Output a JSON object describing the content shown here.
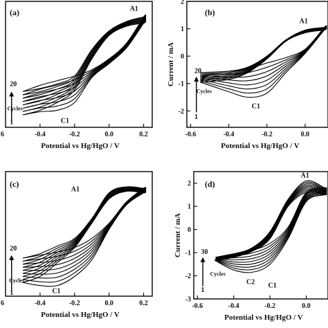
{
  "chart_data": [
    {
      "type": "line",
      "panel_label": "(a)",
      "xlabel": "Potential vs Hg/HgO / V",
      "ylabel": "",
      "xticks": [
        "-0.4",
        "-0.2",
        "0.0",
        "0.2"
      ],
      "xtick_values": [
        -0.4,
        -0.2,
        0.0,
        0.2
      ],
      "edge_tick": "6",
      "yticks": [],
      "xlim": [
        -0.6,
        0.25
      ],
      "ylim": [
        -2.1,
        1.95
      ],
      "cycles": 20,
      "annotations": {
        "peak_anodic": "A1",
        "peak_cathodic": "C1",
        "cycle_top": "20",
        "cycle_bottom": "1",
        "cycles_label": "Cycles"
      },
      "series": [
        {
          "name": "",
          "x": [
            -0.5,
            -0.4,
            -0.3,
            -0.2,
            -0.1,
            0.0,
            0.1,
            0.2
          ],
          "y": [
            -0.95,
            -0.85,
            -0.7,
            -0.45,
            0.4,
            1.0,
            1.3,
            1.45
          ]
        },
        {
          "name": "",
          "x": [
            0.2,
            0.1,
            0.0,
            -0.1,
            -0.2,
            -0.3,
            -0.4,
            -0.5
          ],
          "y": [
            1.45,
            0.6,
            0.1,
            -0.25,
            -0.45,
            -0.6,
            -0.75,
            -0.95
          ]
        },
        {
          "name": "",
          "x": [
            -0.5,
            -0.4,
            -0.3,
            -0.2,
            -0.1,
            0.0,
            0.1,
            0.2
          ],
          "y": [
            -1.7,
            -1.55,
            -1.3,
            -0.9,
            0.1,
            0.85,
            1.15,
            1.25
          ]
        },
        {
          "name": "",
          "x": [
            0.2,
            0.1,
            0.0,
            -0.1,
            -0.2,
            -0.3,
            -0.4,
            -0.5
          ],
          "y": [
            1.25,
            0.45,
            -0.05,
            -0.5,
            -1.3,
            -1.55,
            -1.6,
            -1.7
          ]
        }
      ]
    },
    {
      "type": "line",
      "panel_label": "(b)",
      "xlabel": "Potential vs Hg/HgO / V",
      "ylabel": "Current / mA",
      "xticks": [
        "-0.6",
        "-0.4",
        "-0.2",
        "0.0"
      ],
      "xtick_values": [
        -0.6,
        -0.4,
        -0.2,
        0.0
      ],
      "yticks": [
        "2",
        "1",
        "0",
        "-1",
        "-2"
      ],
      "ytick_values": [
        2,
        1,
        0,
        -1,
        -2
      ],
      "xlim": [
        -0.62,
        0.12
      ],
      "ylim": [
        -2.6,
        2.0
      ],
      "cycles": 20,
      "annotations": {
        "peak_anodic": "A1",
        "peak_cathodic": "C1",
        "cycle_top": "20",
        "cycle_bottom": "1",
        "cycles_label": "Cycles"
      },
      "series": [
        {
          "name": "",
          "x": [
            -0.55,
            -0.4,
            -0.3,
            -0.2,
            -0.1,
            0.0,
            0.1
          ],
          "y": [
            -0.6,
            -0.55,
            -0.4,
            0.0,
            0.6,
            0.95,
            1.05
          ]
        },
        {
          "name": "",
          "x": [
            0.1,
            0.0,
            -0.1,
            -0.2,
            -0.3,
            -0.4,
            -0.55
          ],
          "y": [
            1.05,
            0.25,
            -0.05,
            -0.25,
            -0.45,
            -0.55,
            -0.6
          ]
        },
        {
          "name": "",
          "x": [
            -0.55,
            -0.4,
            -0.3,
            -0.2,
            -0.1,
            0.0,
            0.1
          ],
          "y": [
            -0.95,
            -0.85,
            -0.6,
            -0.1,
            0.55,
            0.85,
            0.95
          ]
        },
        {
          "name": "",
          "x": [
            0.1,
            0.0,
            -0.1,
            -0.2,
            -0.3,
            -0.4,
            -0.55
          ],
          "y": [
            0.95,
            0.1,
            -0.6,
            -1.35,
            -1.5,
            -1.3,
            -0.95
          ]
        }
      ]
    },
    {
      "type": "line",
      "panel_label": "(c)",
      "xlabel": "Potential vs Hg/HgO / V",
      "ylabel": "",
      "xticks": [
        "-0.4",
        "-0.2",
        "0.0",
        "0.2"
      ],
      "xtick_values": [
        -0.4,
        -0.2,
        0.0,
        0.2
      ],
      "edge_tick": "6",
      "yticks": [],
      "xlim": [
        -0.6,
        0.25
      ],
      "ylim": [
        -2.2,
        1.9
      ],
      "cycles": 20,
      "annotations": {
        "peak_anodic": "A1",
        "peak_cathodic": "C1",
        "cycle_top": "20",
        "cycle_bottom": "1",
        "cycles_label": "Cycles"
      },
      "series": [
        {
          "name": "",
          "x": [
            -0.5,
            -0.4,
            -0.3,
            -0.2,
            -0.1,
            0.0,
            0.1,
            0.2
          ],
          "y": [
            -0.95,
            -0.8,
            -0.55,
            -0.3,
            0.35,
            1.2,
            1.4,
            1.35
          ]
        },
        {
          "name": "",
          "x": [
            0.2,
            0.1,
            0.0,
            -0.1,
            -0.2,
            -0.3,
            -0.4,
            -0.5
          ],
          "y": [
            1.35,
            0.9,
            0.2,
            -0.3,
            -0.6,
            -0.75,
            -0.85,
            -0.95
          ]
        },
        {
          "name": "",
          "x": [
            -0.5,
            -0.4,
            -0.3,
            -0.2,
            -0.1,
            0.0,
            0.1,
            0.2
          ],
          "y": [
            -1.75,
            -1.55,
            -1.1,
            -0.6,
            0.2,
            1.0,
            1.25,
            1.2
          ]
        },
        {
          "name": "",
          "x": [
            0.2,
            0.1,
            0.0,
            -0.1,
            -0.2,
            -0.3,
            -0.4,
            -0.5
          ],
          "y": [
            1.2,
            0.8,
            0.0,
            -1.0,
            -1.55,
            -1.85,
            -1.85,
            -1.75
          ]
        }
      ]
    },
    {
      "type": "line",
      "panel_label": "(d)",
      "xlabel": "Potential vs Hg/HgO / V",
      "ylabel": "Current / mA",
      "xticks": [
        "-0.6",
        "-0.4",
        "-0.2",
        "0.0"
      ],
      "xtick_values": [
        -0.6,
        -0.4,
        -0.2,
        0.0
      ],
      "yticks": [
        "2",
        "1",
        "0",
        "-1",
        "-2",
        "-3"
      ],
      "ytick_values": [
        2,
        1,
        0,
        -1,
        -2,
        -3
      ],
      "xlim": [
        -0.62,
        0.12
      ],
      "ylim": [
        -3.0,
        2.5
      ],
      "cycles": 30,
      "annotations": {
        "peak_anodic": "A1",
        "peak_cathodic": "C1",
        "peak_cathodic_2": "C2",
        "cycle_top": "30",
        "cycle_bottom": "1",
        "cycles_label": "Cycles"
      },
      "series": [
        {
          "name": "",
          "x": [
            -0.5,
            -0.4,
            -0.3,
            -0.2,
            -0.1,
            0.0,
            0.1
          ],
          "y": [
            -1.2,
            -1.05,
            -0.8,
            -0.1,
            1.3,
            2.1,
            1.8
          ]
        },
        {
          "name": "",
          "x": [
            0.1,
            0.0,
            -0.1,
            -0.2,
            -0.3,
            -0.4,
            -0.5
          ],
          "y": [
            1.8,
            1.6,
            0.1,
            -0.6,
            -0.9,
            -1.05,
            -1.2
          ]
        },
        {
          "name": "",
          "x": [
            -0.5,
            -0.4,
            -0.3,
            -0.2,
            -0.1,
            0.0,
            0.1
          ],
          "y": [
            -1.35,
            -1.2,
            -0.95,
            -0.4,
            1.0,
            1.6,
            1.5
          ]
        },
        {
          "name": "",
          "x": [
            0.1,
            0.0,
            -0.1,
            -0.2,
            -0.3,
            -0.4,
            -0.5
          ],
          "y": [
            1.5,
            1.2,
            -0.4,
            -1.5,
            -1.85,
            -1.75,
            -1.35
          ]
        }
      ]
    }
  ]
}
